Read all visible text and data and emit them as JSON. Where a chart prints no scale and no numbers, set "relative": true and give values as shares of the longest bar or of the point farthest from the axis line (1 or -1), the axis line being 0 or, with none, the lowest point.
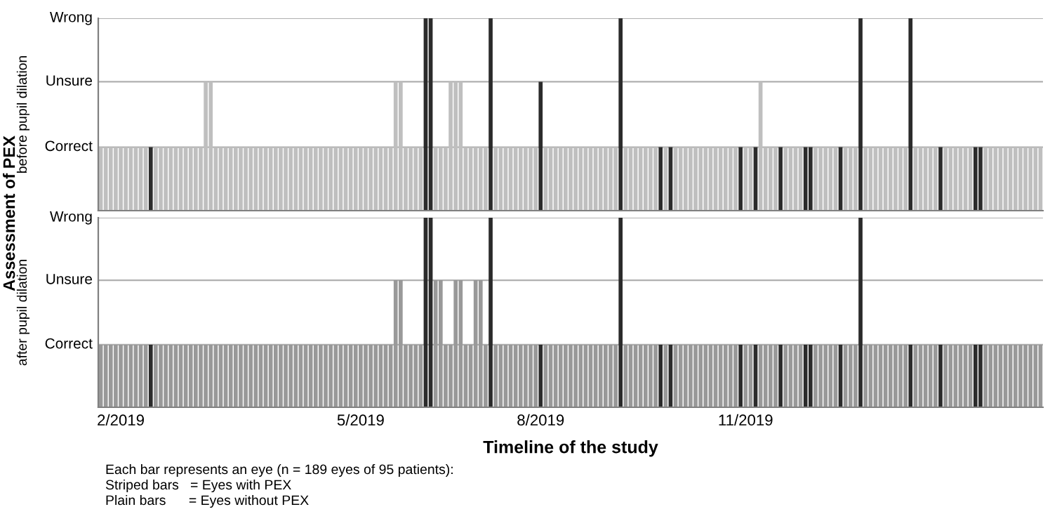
{
  "chart_data": [
    {
      "type": "bar",
      "ylabel": "before pupil dilation",
      "annotations": [
        "Assessment of PEX"
      ],
      "ref_lines": [
        {
          "axis": "y",
          "value": 0.33,
          "label": "Correct",
          "color": "#b0b0b0"
        },
        {
          "axis": "y",
          "value": 0.67,
          "label": "Unsure",
          "color": "#b0b0b0"
        },
        {
          "axis": "y",
          "value": 1,
          "label": "Wrong",
          "color": "#b0b0b0"
        }
      ],
      "categories": [
        null,
        null,
        null,
        null,
        null,
        null,
        null,
        null,
        null,
        null,
        null,
        null,
        null,
        null,
        null,
        null,
        null,
        null,
        null,
        null,
        null,
        null,
        null,
        null,
        null,
        null,
        null,
        null,
        null,
        null,
        null,
        null,
        null,
        null,
        null,
        null,
        null,
        null,
        null,
        null,
        null,
        null,
        null,
        null,
        null,
        null,
        null,
        null,
        null,
        null,
        null,
        null,
        null,
        null,
        null,
        null,
        null,
        null,
        null,
        null,
        null,
        null,
        null,
        null,
        null,
        null,
        null,
        null,
        null,
        null,
        null,
        null,
        null,
        null,
        null,
        null,
        null,
        null,
        null,
        null,
        null,
        null,
        null,
        null,
        null,
        null,
        null,
        null,
        null,
        null,
        null,
        null,
        null,
        null,
        null,
        null,
        null,
        null,
        null,
        null,
        null,
        null,
        null,
        null,
        null,
        null,
        null,
        null,
        null,
        null,
        null,
        null,
        null,
        null,
        null,
        null,
        null,
        null,
        null,
        null,
        null,
        null,
        null,
        null,
        null,
        null,
        null,
        null,
        null,
        null,
        null,
        null,
        null,
        null,
        null,
        null,
        null,
        null,
        null,
        null,
        null,
        null,
        null,
        null,
        null,
        null,
        null,
        null,
        null,
        null,
        null,
        null,
        null,
        null,
        null,
        null,
        null,
        null,
        null,
        null,
        null,
        null,
        null,
        null,
        null,
        null,
        null,
        null,
        null,
        null,
        null,
        null,
        null,
        null,
        null,
        null,
        null,
        null,
        null,
        null,
        null,
        null,
        null,
        null,
        null,
        null,
        null,
        null,
        null
      ],
      "values": [
        0.33,
        0.33,
        0.33,
        0.33,
        0.33,
        0.33,
        0.33,
        0.33,
        0.33,
        0.33,
        0.33,
        0.33,
        0.33,
        0.33,
        0.33,
        0.33,
        0.33,
        0.33,
        0.33,
        0.33,
        0.33,
        0.67,
        0.67,
        0.33,
        0.33,
        0.33,
        0.33,
        0.33,
        0.33,
        0.33,
        0.33,
        0.33,
        0.33,
        0.33,
        0.33,
        0.33,
        0.33,
        0.33,
        0.33,
        0.33,
        0.33,
        0.33,
        0.33,
        0.33,
        0.33,
        0.33,
        0.33,
        0.33,
        0.33,
        0.33,
        0.33,
        0.33,
        0.33,
        0.33,
        0.33,
        0.33,
        0.33,
        0.33,
        0.33,
        0.67,
        0.67,
        0.33,
        0.33,
        0.33,
        0.33,
        1,
        1,
        0.33,
        0.33,
        0.33,
        0.67,
        0.67,
        0.67,
        0.33,
        0.33,
        0.33,
        0.33,
        0.33,
        1,
        0.33,
        0.33,
        0.33,
        0.33,
        0.33,
        0.33,
        0.33,
        0.33,
        0.33,
        0.67,
        0.33,
        0.33,
        0.33,
        0.33,
        0.33,
        0.33,
        0.33,
        0.33,
        0.33,
        0.33,
        0.33,
        0.33,
        0.33,
        0.33,
        0.33,
        1,
        0.33,
        0.33,
        0.33,
        0.33,
        0.33,
        0.33,
        0.33,
        0.33,
        0.33,
        0.33,
        0.33,
        0.33,
        0.33,
        0.33,
        0.33,
        0.33,
        0.33,
        0.33,
        0.33,
        0.33,
        0.33,
        0.33,
        0.33,
        0.33,
        0.33,
        0.33,
        0.33,
        0.67,
        0.33,
        0.33,
        0.33,
        0.33,
        0.33,
        0.33,
        0.33,
        0.33,
        0.33,
        0.33,
        0.33,
        0.33,
        0.33,
        0.33,
        0.33,
        0.33,
        0.33,
        0.33,
        0.33,
        1,
        0.33,
        0.33,
        0.33,
        0.33,
        0.33,
        0.33,
        0.33,
        0.33,
        0.33,
        1,
        0.33,
        0.33,
        0.33,
        0.33,
        0.33,
        0.33,
        0.33,
        0.33,
        0.33,
        0.33,
        0.33,
        0.33,
        0.33,
        0.33,
        0.33,
        0.33,
        0.33,
        0.33,
        0.33,
        0.33,
        0.33,
        0.33,
        0.33,
        0.33,
        0.33,
        0.33
      ],
      "colors": [
        "#bfbfbf",
        "#bfbfbf",
        "#bfbfbf",
        "#bfbfbf",
        "#bfbfbf",
        "#bfbfbf",
        "#bfbfbf",
        "#bfbfbf",
        "#bfbfbf",
        "#bfbfbf",
        "#2b2b2b",
        "#bfbfbf",
        "#bfbfbf",
        "#bfbfbf",
        "#bfbfbf",
        "#bfbfbf",
        "#bfbfbf",
        "#bfbfbf",
        "#bfbfbf",
        "#bfbfbf",
        "#bfbfbf",
        "#bfbfbf",
        "#bfbfbf",
        "#bfbfbf",
        "#bfbfbf",
        "#bfbfbf",
        "#bfbfbf",
        "#bfbfbf",
        "#bfbfbf",
        "#bfbfbf",
        "#bfbfbf",
        "#bfbfbf",
        "#bfbfbf",
        "#bfbfbf",
        "#bfbfbf",
        "#bfbfbf",
        "#bfbfbf",
        "#bfbfbf",
        "#bfbfbf",
        "#bfbfbf",
        "#bfbfbf",
        "#bfbfbf",
        "#bfbfbf",
        "#bfbfbf",
        "#bfbfbf",
        "#bfbfbf",
        "#bfbfbf",
        "#bfbfbf",
        "#bfbfbf",
        "#bfbfbf",
        "#bfbfbf",
        "#bfbfbf",
        "#bfbfbf",
        "#bfbfbf",
        "#bfbfbf",
        "#bfbfbf",
        "#bfbfbf",
        "#bfbfbf",
        "#bfbfbf",
        "#bfbfbf",
        "#bfbfbf",
        "#bfbfbf",
        "#bfbfbf",
        "#bfbfbf",
        "#bfbfbf",
        "#2b2b2b",
        "#2b2b2b",
        "#bfbfbf",
        "#bfbfbf",
        "#bfbfbf",
        "#bfbfbf",
        "#bfbfbf",
        "#bfbfbf",
        "#bfbfbf",
        "#bfbfbf",
        "#bfbfbf",
        "#bfbfbf",
        "#bfbfbf",
        "#2b2b2b",
        "#bfbfbf",
        "#bfbfbf",
        "#bfbfbf",
        "#bfbfbf",
        "#bfbfbf",
        "#bfbfbf",
        "#bfbfbf",
        "#bfbfbf",
        "#bfbfbf",
        "#2b2b2b",
        "#bfbfbf",
        "#bfbfbf",
        "#bfbfbf",
        "#bfbfbf",
        "#bfbfbf",
        "#bfbfbf",
        "#bfbfbf",
        "#bfbfbf",
        "#bfbfbf",
        "#bfbfbf",
        "#bfbfbf",
        "#bfbfbf",
        "#bfbfbf",
        "#bfbfbf",
        "#bfbfbf",
        "#2b2b2b",
        "#bfbfbf",
        "#bfbfbf",
        "#bfbfbf",
        "#bfbfbf",
        "#bfbfbf",
        "#bfbfbf",
        "#bfbfbf",
        "#2b2b2b",
        "#bfbfbf",
        "#2b2b2b",
        "#bfbfbf",
        "#bfbfbf",
        "#bfbfbf",
        "#bfbfbf",
        "#bfbfbf",
        "#bfbfbf",
        "#bfbfbf",
        "#bfbfbf",
        "#bfbfbf",
        "#bfbfbf",
        "#bfbfbf",
        "#bfbfbf",
        "#bfbfbf",
        "#2b2b2b",
        "#bfbfbf",
        "#bfbfbf",
        "#2b2b2b",
        "#bfbfbf",
        "#bfbfbf",
        "#bfbfbf",
        "#bfbfbf",
        "#2b2b2b",
        "#bfbfbf",
        "#bfbfbf",
        "#bfbfbf",
        "#bfbfbf",
        "#2b2b2b",
        "#2b2b2b",
        "#bfbfbf",
        "#bfbfbf",
        "#bfbfbf",
        "#bfbfbf",
        "#bfbfbf",
        "#2b2b2b",
        "#bfbfbf",
        "#bfbfbf",
        "#bfbfbf",
        "#2b2b2b",
        "#bfbfbf",
        "#bfbfbf",
        "#bfbfbf",
        "#bfbfbf",
        "#bfbfbf",
        "#bfbfbf",
        "#bfbfbf",
        "#bfbfbf",
        "#bfbfbf",
        "#2b2b2b",
        "#bfbfbf",
        "#bfbfbf",
        "#bfbfbf",
        "#bfbfbf",
        "#bfbfbf",
        "#2b2b2b",
        "#bfbfbf",
        "#bfbfbf",
        "#bfbfbf",
        "#bfbfbf",
        "#bfbfbf",
        "#bfbfbf",
        "#2b2b2b",
        "#2b2b2b",
        "#bfbfbf",
        "#bfbfbf",
        "#bfbfbf",
        "#bfbfbf",
        "#bfbfbf",
        "#bfbfbf",
        "#bfbfbf",
        "#bfbfbf",
        "#bfbfbf",
        "#bfbfbf",
        "#bfbfbf",
        "#bfbfbf"
      ],
      "relative": true,
      "tick_labels": false
    },
    {
      "type": "bar",
      "ylabel": "after pupil dilation",
      "xlabel": "Timeline of the study",
      "annotations": [
        "Each bar represents an eye (n = 189 eyes of 95 patients):",
        "Striped bars   = Eyes with PEX",
        "Plain bars      = Eyes without PEX"
      ],
      "ref_lines": [
        {
          "axis": "y",
          "value": 0.33,
          "label": "Correct",
          "color": "#b0b0b0"
        },
        {
          "axis": "y",
          "value": 0.67,
          "label": "Unsure",
          "color": "#b0b0b0"
        },
        {
          "axis": "y",
          "value": 1,
          "label": "Wrong",
          "color": "#b0b0b0"
        }
      ],
      "categories": [
        null,
        null,
        null,
        null,
        "2/2019",
        null,
        null,
        null,
        null,
        null,
        null,
        null,
        null,
        null,
        null,
        null,
        null,
        null,
        null,
        null,
        null,
        null,
        null,
        null,
        null,
        null,
        null,
        null,
        null,
        null,
        null,
        null,
        null,
        null,
        null,
        null,
        null,
        null,
        null,
        null,
        null,
        null,
        null,
        null,
        null,
        null,
        null,
        null,
        null,
        null,
        null,
        null,
        "5/2019",
        null,
        null,
        null,
        null,
        null,
        null,
        null,
        null,
        null,
        null,
        null,
        null,
        null,
        null,
        null,
        null,
        null,
        null,
        null,
        null,
        null,
        null,
        null,
        null,
        null,
        null,
        null,
        null,
        null,
        null,
        null,
        null,
        null,
        null,
        null,
        "8/2019",
        null,
        null,
        null,
        null,
        null,
        null,
        null,
        null,
        null,
        null,
        null,
        null,
        null,
        null,
        null,
        null,
        null,
        null,
        null,
        null,
        null,
        null,
        null,
        null,
        null,
        null,
        null,
        null,
        null,
        null,
        null,
        null,
        null,
        null,
        null,
        null,
        null,
        null,
        null,
        null,
        "11/2019",
        null,
        null,
        null,
        null,
        null,
        null,
        null,
        null,
        null,
        null,
        null,
        null,
        null,
        null,
        null,
        null,
        null,
        null,
        null,
        null,
        null,
        null,
        null,
        null,
        null,
        null,
        null,
        null,
        null,
        null,
        null,
        null,
        null,
        null,
        null,
        null,
        null,
        null,
        null,
        null,
        null,
        null,
        null,
        null,
        null,
        null,
        null,
        null,
        null,
        null,
        null,
        null,
        null,
        null,
        null,
        null,
        null,
        null,
        null
      ],
      "values": [
        0.33,
        0.33,
        0.33,
        0.33,
        0.33,
        0.33,
        0.33,
        0.33,
        0.33,
        0.33,
        0.33,
        0.33,
        0.33,
        0.33,
        0.33,
        0.33,
        0.33,
        0.33,
        0.33,
        0.33,
        0.33,
        0.33,
        0.33,
        0.33,
        0.33,
        0.33,
        0.33,
        0.33,
        0.33,
        0.33,
        0.33,
        0.33,
        0.33,
        0.33,
        0.33,
        0.33,
        0.33,
        0.33,
        0.33,
        0.33,
        0.33,
        0.33,
        0.33,
        0.33,
        0.33,
        0.33,
        0.33,
        0.33,
        0.33,
        0.33,
        0.33,
        0.33,
        0.33,
        0.33,
        0.33,
        0.33,
        0.33,
        0.33,
        0.33,
        0.67,
        0.67,
        0.33,
        0.33,
        0.33,
        0.33,
        1,
        1,
        0.67,
        0.67,
        0.33,
        0.33,
        0.67,
        0.67,
        0.33,
        0.33,
        0.67,
        0.67,
        0.33,
        1,
        0.33,
        0.33,
        0.33,
        0.33,
        0.33,
        0.33,
        0.33,
        0.33,
        0.33,
        0.33,
        0.33,
        0.33,
        0.33,
        0.33,
        0.33,
        0.33,
        0.33,
        0.33,
        0.33,
        0.33,
        0.33,
        0.33,
        0.33,
        0.33,
        0.33,
        1,
        0.33,
        0.33,
        0.33,
        0.33,
        0.33,
        0.33,
        0.33,
        0.33,
        0.33,
        0.33,
        0.33,
        0.33,
        0.33,
        0.33,
        0.33,
        0.33,
        0.33,
        0.33,
        0.33,
        0.33,
        0.33,
        0.33,
        0.33,
        0.33,
        0.33,
        0.33,
        0.33,
        0.33,
        0.33,
        0.33,
        0.33,
        0.33,
        0.33,
        0.33,
        0.33,
        0.33,
        0.33,
        0.33,
        0.33,
        0.33,
        0.33,
        0.33,
        0.33,
        0.33,
        0.33,
        0.33,
        0.33,
        1,
        0.33,
        0.33,
        0.33,
        0.33,
        0.33,
        0.33,
        0.33,
        0.33,
        0.33,
        0.33,
        0.33,
        0.33,
        0.33,
        0.33,
        0.33,
        0.33,
        0.33,
        0.33,
        0.33,
        0.33,
        0.33,
        0.33,
        0.33,
        0.33,
        0.33,
        0.33,
        0.33,
        0.33,
        0.33,
        0.33,
        0.33,
        0.33,
        0.33,
        0.33,
        0.33,
        0.33
      ],
      "colors": [
        "#999999",
        "#999999",
        "#999999",
        "#999999",
        "#999999",
        "#999999",
        "#999999",
        "#999999",
        "#999999",
        "#999999",
        "#2b2b2b",
        "#999999",
        "#999999",
        "#999999",
        "#999999",
        "#999999",
        "#999999",
        "#999999",
        "#999999",
        "#999999",
        "#999999",
        "#999999",
        "#999999",
        "#999999",
        "#999999",
        "#999999",
        "#999999",
        "#999999",
        "#999999",
        "#999999",
        "#999999",
        "#999999",
        "#999999",
        "#999999",
        "#999999",
        "#999999",
        "#999999",
        "#999999",
        "#999999",
        "#999999",
        "#999999",
        "#999999",
        "#999999",
        "#999999",
        "#999999",
        "#999999",
        "#999999",
        "#999999",
        "#999999",
        "#999999",
        "#999999",
        "#999999",
        "#999999",
        "#999999",
        "#999999",
        "#999999",
        "#999999",
        "#999999",
        "#999999",
        "#999999",
        "#999999",
        "#999999",
        "#999999",
        "#999999",
        "#999999",
        "#2b2b2b",
        "#2b2b2b",
        "#999999",
        "#999999",
        "#999999",
        "#999999",
        "#999999",
        "#999999",
        "#999999",
        "#999999",
        "#999999",
        "#999999",
        "#999999",
        "#2b2b2b",
        "#999999",
        "#999999",
        "#999999",
        "#999999",
        "#999999",
        "#999999",
        "#999999",
        "#999999",
        "#999999",
        "#2b2b2b",
        "#999999",
        "#999999",
        "#999999",
        "#999999",
        "#999999",
        "#999999",
        "#999999",
        "#999999",
        "#999999",
        "#999999",
        "#999999",
        "#999999",
        "#999999",
        "#999999",
        "#999999",
        "#2b2b2b",
        "#999999",
        "#999999",
        "#999999",
        "#999999",
        "#999999",
        "#999999",
        "#999999",
        "#2b2b2b",
        "#999999",
        "#2b2b2b",
        "#999999",
        "#999999",
        "#999999",
        "#999999",
        "#999999",
        "#999999",
        "#999999",
        "#999999",
        "#999999",
        "#999999",
        "#999999",
        "#999999",
        "#999999",
        "#2b2b2b",
        "#999999",
        "#999999",
        "#2b2b2b",
        "#999999",
        "#999999",
        "#999999",
        "#999999",
        "#2b2b2b",
        "#999999",
        "#999999",
        "#999999",
        "#999999",
        "#2b2b2b",
        "#2b2b2b",
        "#999999",
        "#999999",
        "#999999",
        "#999999",
        "#999999",
        "#2b2b2b",
        "#999999",
        "#999999",
        "#999999",
        "#2b2b2b",
        "#999999",
        "#999999",
        "#999999",
        "#999999",
        "#999999",
        "#999999",
        "#999999",
        "#999999",
        "#999999",
        "#2b2b2b",
        "#999999",
        "#999999",
        "#999999",
        "#999999",
        "#999999",
        "#2b2b2b",
        "#999999",
        "#999999",
        "#999999",
        "#999999",
        "#999999",
        "#999999",
        "#2b2b2b",
        "#2b2b2b",
        "#999999",
        "#999999",
        "#999999",
        "#999999",
        "#999999",
        "#999999",
        "#999999",
        "#999999",
        "#999999",
        "#999999",
        "#999999",
        "#999999"
      ],
      "relative": true,
      "tick_labels": "x"
    }
  ]
}
